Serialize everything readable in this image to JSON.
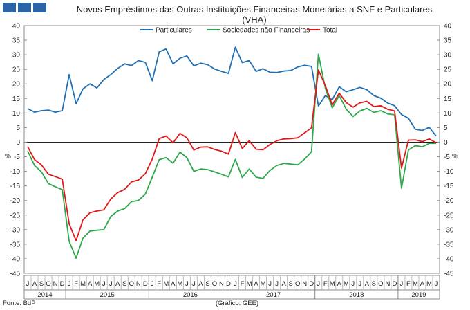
{
  "chart_data": {
    "type": "line",
    "title_line1": "Novos Empréstimos das Outras Instituições Financeiras Monetárias a SNF e Particulares",
    "title_line2": "(VHA)",
    "ylabel_left": "%",
    "ylabel_right": "%",
    "ylim": [
      -45,
      40
    ],
    "yticks": [
      -45,
      -40,
      -35,
      -30,
      -25,
      -20,
      -15,
      -10,
      -5,
      0,
      5,
      10,
      15,
      20,
      25,
      30,
      35,
      40
    ],
    "grid": false,
    "legend_position": "top-center",
    "month_labels": [
      "J",
      "A",
      "S",
      "O",
      "N",
      "D",
      "J",
      "F",
      "M",
      "A",
      "M",
      "J",
      "J",
      "A",
      "S",
      "O",
      "N",
      "D",
      "J",
      "F",
      "M",
      "A",
      "M",
      "J",
      "J",
      "A",
      "S",
      "O",
      "N",
      "D",
      "J",
      "F",
      "M",
      "A",
      "M",
      "J",
      "J",
      "A",
      "S",
      "O",
      "N",
      "D",
      "J",
      "F",
      "M",
      "A",
      "M",
      "J",
      "J",
      "A",
      "S",
      "O",
      "N",
      "D",
      "J",
      "F",
      "M",
      "A",
      "M",
      "J"
    ],
    "years": [
      {
        "label": "2014",
        "months": 6
      },
      {
        "label": "2015",
        "months": 12
      },
      {
        "label": "2016",
        "months": 12
      },
      {
        "label": "2017",
        "months": 12
      },
      {
        "label": "2018",
        "months": 12
      },
      {
        "label": "2019",
        "months": 6
      }
    ],
    "series": [
      {
        "name": "Particulares",
        "color": "#1f6fb4",
        "values": [
          11.5,
          10.3,
          10.8,
          11,
          10.3,
          10.8,
          23.2,
          13.2,
          18.3,
          20,
          18.6,
          21.5,
          23.2,
          25.3,
          26.9,
          26.3,
          28,
          27.4,
          21.1,
          31,
          32,
          26.9,
          28.8,
          29.6,
          26.2,
          27.1,
          26.6,
          25.1,
          24.3,
          23.6,
          32.6,
          27.3,
          28,
          24.3,
          25.2,
          24,
          23.9,
          24.4,
          24.6,
          25.8,
          26.4,
          26,
          12.4,
          16,
          14.6,
          19,
          17.3,
          18,
          18.8,
          18,
          16,
          15.1,
          13.4,
          12.5,
          9.5,
          8.2,
          4.4,
          4,
          5.1,
          2.1
        ]
      },
      {
        "name": "Sociedades não Financeiras",
        "color": "#2aa84a",
        "values": [
          -3,
          -8,
          -10.2,
          -14.2,
          -15.3,
          -16.3,
          -34,
          -39.8,
          -32.9,
          -30.5,
          -30.2,
          -30,
          -25.5,
          -23.6,
          -22.8,
          -20.4,
          -20,
          -17.8,
          -12,
          -6,
          -5.3,
          -7.2,
          -3.4,
          -5.3,
          -10,
          -9.2,
          -9.4,
          -10.2,
          -11,
          -11.9,
          -5.9,
          -12.1,
          -9.2,
          -12,
          -12.4,
          -9.7,
          -8,
          -7.3,
          -7.5,
          -7.8,
          -5.8,
          -3.3,
          30.2,
          18.5,
          11.8,
          16,
          11.4,
          8.8,
          10.7,
          11.6,
          10.2,
          10.8,
          9.7,
          9.4,
          -15.8,
          -2.7,
          -1.2,
          -1.6,
          -0.4,
          -0.4
        ]
      },
      {
        "name": "Total",
        "color": "#e01818",
        "values": [
          -1.5,
          -6,
          -7.8,
          -11,
          -11.8,
          -12.7,
          -28,
          -33.8,
          -26.6,
          -24.2,
          -23.6,
          -23.2,
          -19.5,
          -17.3,
          -16.2,
          -13.6,
          -13,
          -10.8,
          -5.8,
          1.2,
          2.1,
          -0.2,
          3,
          1.5,
          -2.7,
          -1.7,
          -1.6,
          -2.5,
          -3.1,
          -4.1,
          3.3,
          -2.2,
          0.5,
          -2.4,
          -2.6,
          -0.8,
          0.5,
          1.1,
          1.2,
          1.5,
          3.2,
          4.9,
          24.8,
          19.4,
          12.8,
          16.8,
          13.6,
          12,
          13.5,
          14,
          12.2,
          12.5,
          11.3,
          10.7,
          -8.9,
          0.7,
          0.8,
          0.2,
          1.1,
          -0.2
        ]
      }
    ],
    "footnote_left": "Fonte: BdP",
    "footnote_center": "(Gráfico: GEE)"
  }
}
